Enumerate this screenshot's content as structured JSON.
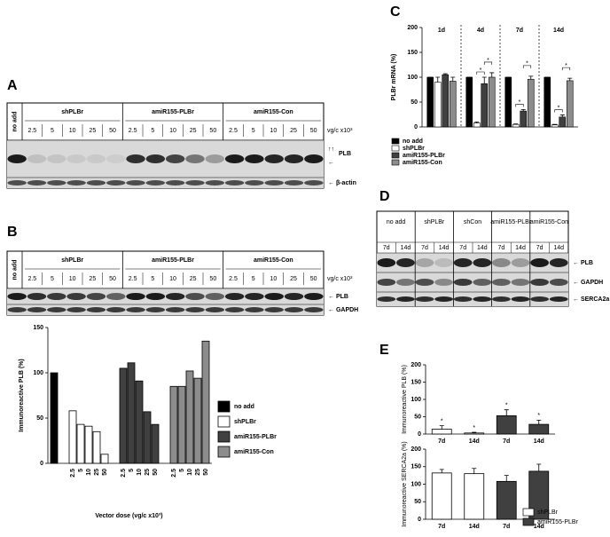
{
  "panel_a": {
    "label": "A",
    "first_lane": "no add",
    "groups": [
      "shPLBr",
      "amiR155-PLBr",
      "amiR155-Con"
    ],
    "doses": [
      "2.5",
      "5",
      "10",
      "25",
      "50"
    ],
    "dose_unit": "vg/c x10³",
    "arrows": "↑↑",
    "bands": [
      "PLB",
      "← β-actin"
    ],
    "band_arrow": "←"
  },
  "panel_b": {
    "label": "B",
    "first_lane": "no add",
    "groups": [
      "shPLBr",
      "amiR155-PLBr",
      "amiR155-Con"
    ],
    "doses": [
      "2.5",
      "5",
      "10",
      "25",
      "50"
    ],
    "dose_unit": "vg/c x10³",
    "bands": [
      "← PLB",
      "← GAPDH"
    ],
    "chart": {
      "type": "bar",
      "ylabel": "Immunoreactive PLB (%)",
      "xlabel": "Vector dose (vg/c x10³)",
      "ylim": [
        0,
        150
      ],
      "yticks": [
        0,
        50,
        100,
        150
      ],
      "categories": [
        null,
        "2.5",
        "5",
        "10",
        "25",
        "50",
        "2.5",
        "5",
        "10",
        "25",
        "50",
        "2.5",
        "5",
        "10",
        "25",
        "50"
      ],
      "series": [
        {
          "name": "no add",
          "color": "#000000",
          "values": [
            100,
            null,
            null,
            null,
            null,
            null,
            null,
            null,
            null,
            null,
            null,
            null,
            null,
            null,
            null,
            null
          ]
        },
        {
          "name": "shPLBr",
          "color": "#ffffff",
          "values": [
            null,
            58,
            43,
            41,
            35,
            10,
            null,
            null,
            null,
            null,
            null,
            null,
            null,
            null,
            null,
            null
          ]
        },
        {
          "name": "amiR155-PLBr",
          "color": "#404040",
          "values": [
            null,
            null,
            null,
            null,
            null,
            null,
            105,
            111,
            91,
            57,
            43,
            null,
            null,
            null,
            null,
            null
          ]
        },
        {
          "name": "amiR155-Con",
          "color": "#8c8c8c",
          "values": [
            null,
            null,
            null,
            null,
            null,
            null,
            null,
            null,
            null,
            null,
            null,
            85,
            85,
            102,
            94,
            135
          ]
        }
      ]
    }
  },
  "panel_c": {
    "label": "C",
    "chart": {
      "type": "bar",
      "ylabel": "PLBr mRNA (%)",
      "ylim": [
        0,
        200
      ],
      "yticks": [
        0,
        50,
        100,
        150,
        200
      ],
      "categories": [
        "1d",
        "4d",
        "7d",
        "14d"
      ],
      "series": [
        {
          "name": "no add",
          "color": "#000000",
          "values": [
            100,
            100,
            100,
            100
          ],
          "errors": [
            0,
            0,
            0,
            0
          ]
        },
        {
          "name": "shPLBr",
          "color": "#ffffff",
          "values": [
            90,
            8,
            5,
            4
          ],
          "errors": [
            10,
            2,
            1,
            1
          ]
        },
        {
          "name": "amiR155-PLBr",
          "color": "#404040",
          "values": [
            105,
            87,
            32,
            20
          ],
          "errors": [
            2,
            13,
            3,
            4
          ]
        },
        {
          "name": "amiR155-Con",
          "color": "#8c8c8c",
          "values": [
            92,
            100,
            96,
            93
          ],
          "errors": [
            8,
            9,
            6,
            5
          ]
        }
      ],
      "brackets": [
        {
          "category": 1,
          "from": 1,
          "to": 2,
          "text": "*"
        },
        {
          "category": 1,
          "from": 2,
          "to": 3,
          "text": "*"
        },
        {
          "category": 2,
          "from": 1,
          "to": 2,
          "text": "*"
        },
        {
          "category": 2,
          "from": 2,
          "to": 3,
          "text": "*"
        },
        {
          "category": 3,
          "from": 1,
          "to": 2,
          "text": "*"
        },
        {
          "category": 3,
          "from": 2,
          "to": 3,
          "text": "*"
        }
      ]
    }
  },
  "panel_d": {
    "label": "D",
    "groups": [
      "no add",
      "shPLBr",
      "shCon",
      "amiR155-PLBr",
      "amiR155-Con"
    ],
    "times": [
      "7d",
      "14d"
    ],
    "bands": [
      "← PLB",
      "← GAPDH",
      "← SERCA2a"
    ]
  },
  "panel_e": {
    "label": "E",
    "charts": [
      {
        "type": "bar",
        "ylabel": "Immunoreactive PLB (%)",
        "ylim": [
          0,
          200
        ],
        "yticks": [
          0,
          50,
          100,
          150,
          200
        ],
        "categories": [
          "7d",
          "14d",
          "7d",
          "14d"
        ],
        "markers": [
          "*",
          "*",
          "*",
          "*"
        ],
        "series": [
          {
            "name": "shPLBr",
            "color": "#ffffff",
            "values": [
              14,
              3,
              null,
              null
            ],
            "errors": [
              10,
              2,
              null,
              null
            ]
          },
          {
            "name": "amiR155-PLBr",
            "color": "#404040",
            "values": [
              null,
              null,
              53,
              28
            ],
            "errors": [
              null,
              null,
              17,
              12
            ]
          }
        ]
      },
      {
        "type": "bar",
        "ylabel": "Immunoreactive SERCA2a (%)",
        "ylim": [
          0,
          200
        ],
        "yticks": [
          0,
          50,
          100,
          150,
          200
        ],
        "categories": [
          "7d",
          "14d",
          "7d",
          "14d"
        ],
        "series": [
          {
            "name": "shPLBr",
            "color": "#ffffff",
            "values": [
              132,
              130,
              null,
              null
            ],
            "errors": [
              10,
              15,
              null,
              null
            ]
          },
          {
            "name": "amiR155-PLBr",
            "color": "#404040",
            "values": [
              null,
              null,
              108,
              137
            ],
            "errors": [
              null,
              null,
              17,
              20
            ]
          }
        ]
      }
    ]
  }
}
